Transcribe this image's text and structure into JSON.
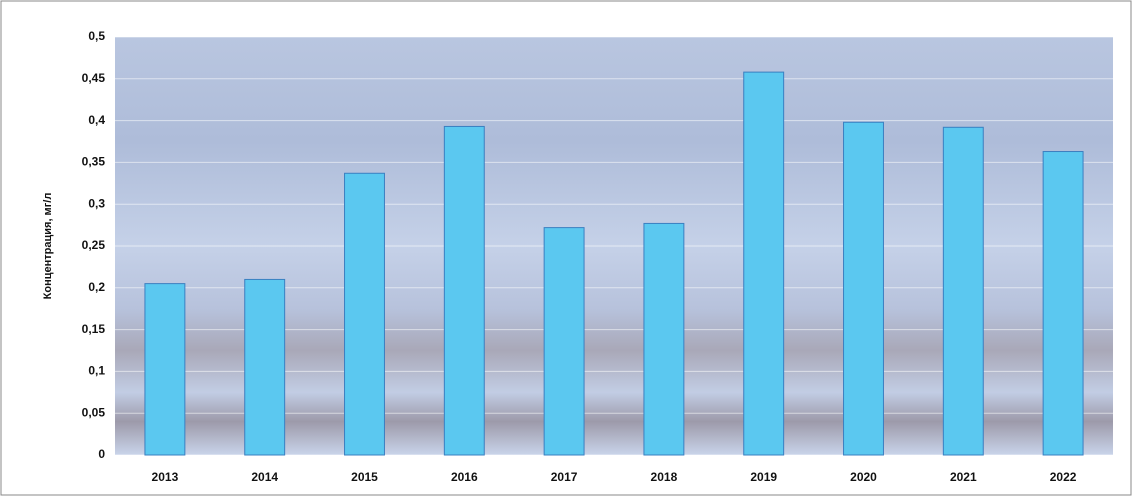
{
  "chart_data": {
    "type": "bar",
    "y_label": "Концентрация, мг/л",
    "categories": [
      "2013",
      "2014",
      "2015",
      "2016",
      "2017",
      "2018",
      "2019",
      "2020",
      "2021",
      "2022"
    ],
    "values": [
      0.205,
      0.21,
      0.337,
      0.393,
      0.272,
      0.277,
      0.458,
      0.398,
      0.392,
      0.363
    ],
    "color": "#5bc8f0",
    "ylim": [
      0,
      0.5
    ],
    "yticks": [
      0,
      {
        "value": 0.05,
        "label": "0,05"
      },
      {
        "value": 0.1,
        "label": "0,1"
      },
      {
        "value": 0.15,
        "label": "0,15"
      },
      {
        "value": 0.2,
        "label": "0,2"
      },
      {
        "value": 0.25,
        "label": "0,25"
      },
      {
        "value": 0.3,
        "label": "0,3"
      },
      {
        "value": 0.35,
        "label": "0,35"
      },
      {
        "value": 0.4,
        "label": "0,4"
      },
      {
        "value": 0.45,
        "label": "0,45"
      },
      {
        "value": 0.5,
        "label": "0,5"
      }
    ],
    "grid": true
  }
}
